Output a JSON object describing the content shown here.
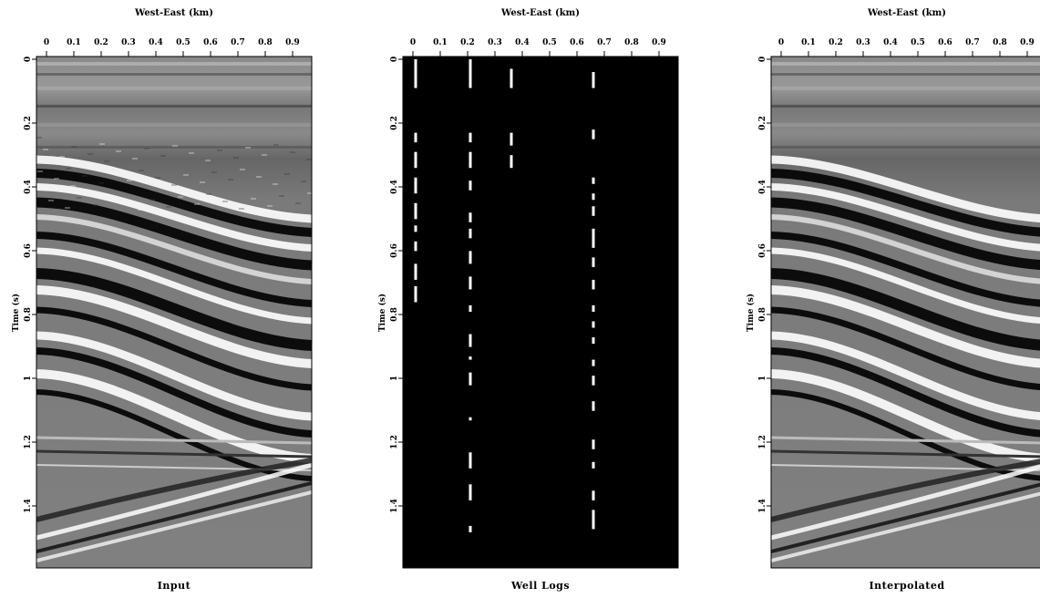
{
  "figure": {
    "panels": [
      {
        "id": "input",
        "caption": "Input",
        "x_title": "West-East (km)",
        "y_title": "Time (s)",
        "x_ticks": [
          "0",
          "0.1",
          "0.2",
          "0.3",
          "0.4",
          "0.5",
          "0.6",
          "0.7",
          "0.8",
          "0.9"
        ],
        "y_ticks": [
          "0",
          "0.2",
          "0.4",
          "0.6",
          "0.8",
          "1",
          "1.2",
          "1.4"
        ],
        "image": "seismic-section-input"
      },
      {
        "id": "well-logs",
        "caption": "Well Logs",
        "x_title": "West-East (km)",
        "y_title": "Time (s)",
        "x_ticks": [
          "0",
          "0.1",
          "0.2",
          "0.3",
          "0.4",
          "0.5",
          "0.6",
          "0.7",
          "0.8",
          "0.9"
        ],
        "y_ticks": [
          "0",
          "0.2",
          "0.4",
          "0.6",
          "0.8",
          "1",
          "1.2",
          "1.4"
        ],
        "image": "sparse-well-log-traces",
        "well_positions_km": [
          0.01,
          0.21,
          0.36,
          0.66
        ]
      },
      {
        "id": "interpolated",
        "caption": "Interpolated",
        "x_title": "West-East (km)",
        "y_title": "Time (s)",
        "x_ticks": [
          "0",
          "0.1",
          "0.2",
          "0.3",
          "0.4",
          "0.5",
          "0.6",
          "0.7",
          "0.8",
          "0.9"
        ],
        "y_ticks": [
          "0",
          "0.2",
          "0.4",
          "0.6",
          "0.8",
          "1",
          "1.2",
          "1.4"
        ],
        "image": "seismic-section-interpolated"
      }
    ],
    "colors": {
      "background": "#ffffff",
      "well_background": "#000000",
      "trace": "#ffffff"
    }
  }
}
